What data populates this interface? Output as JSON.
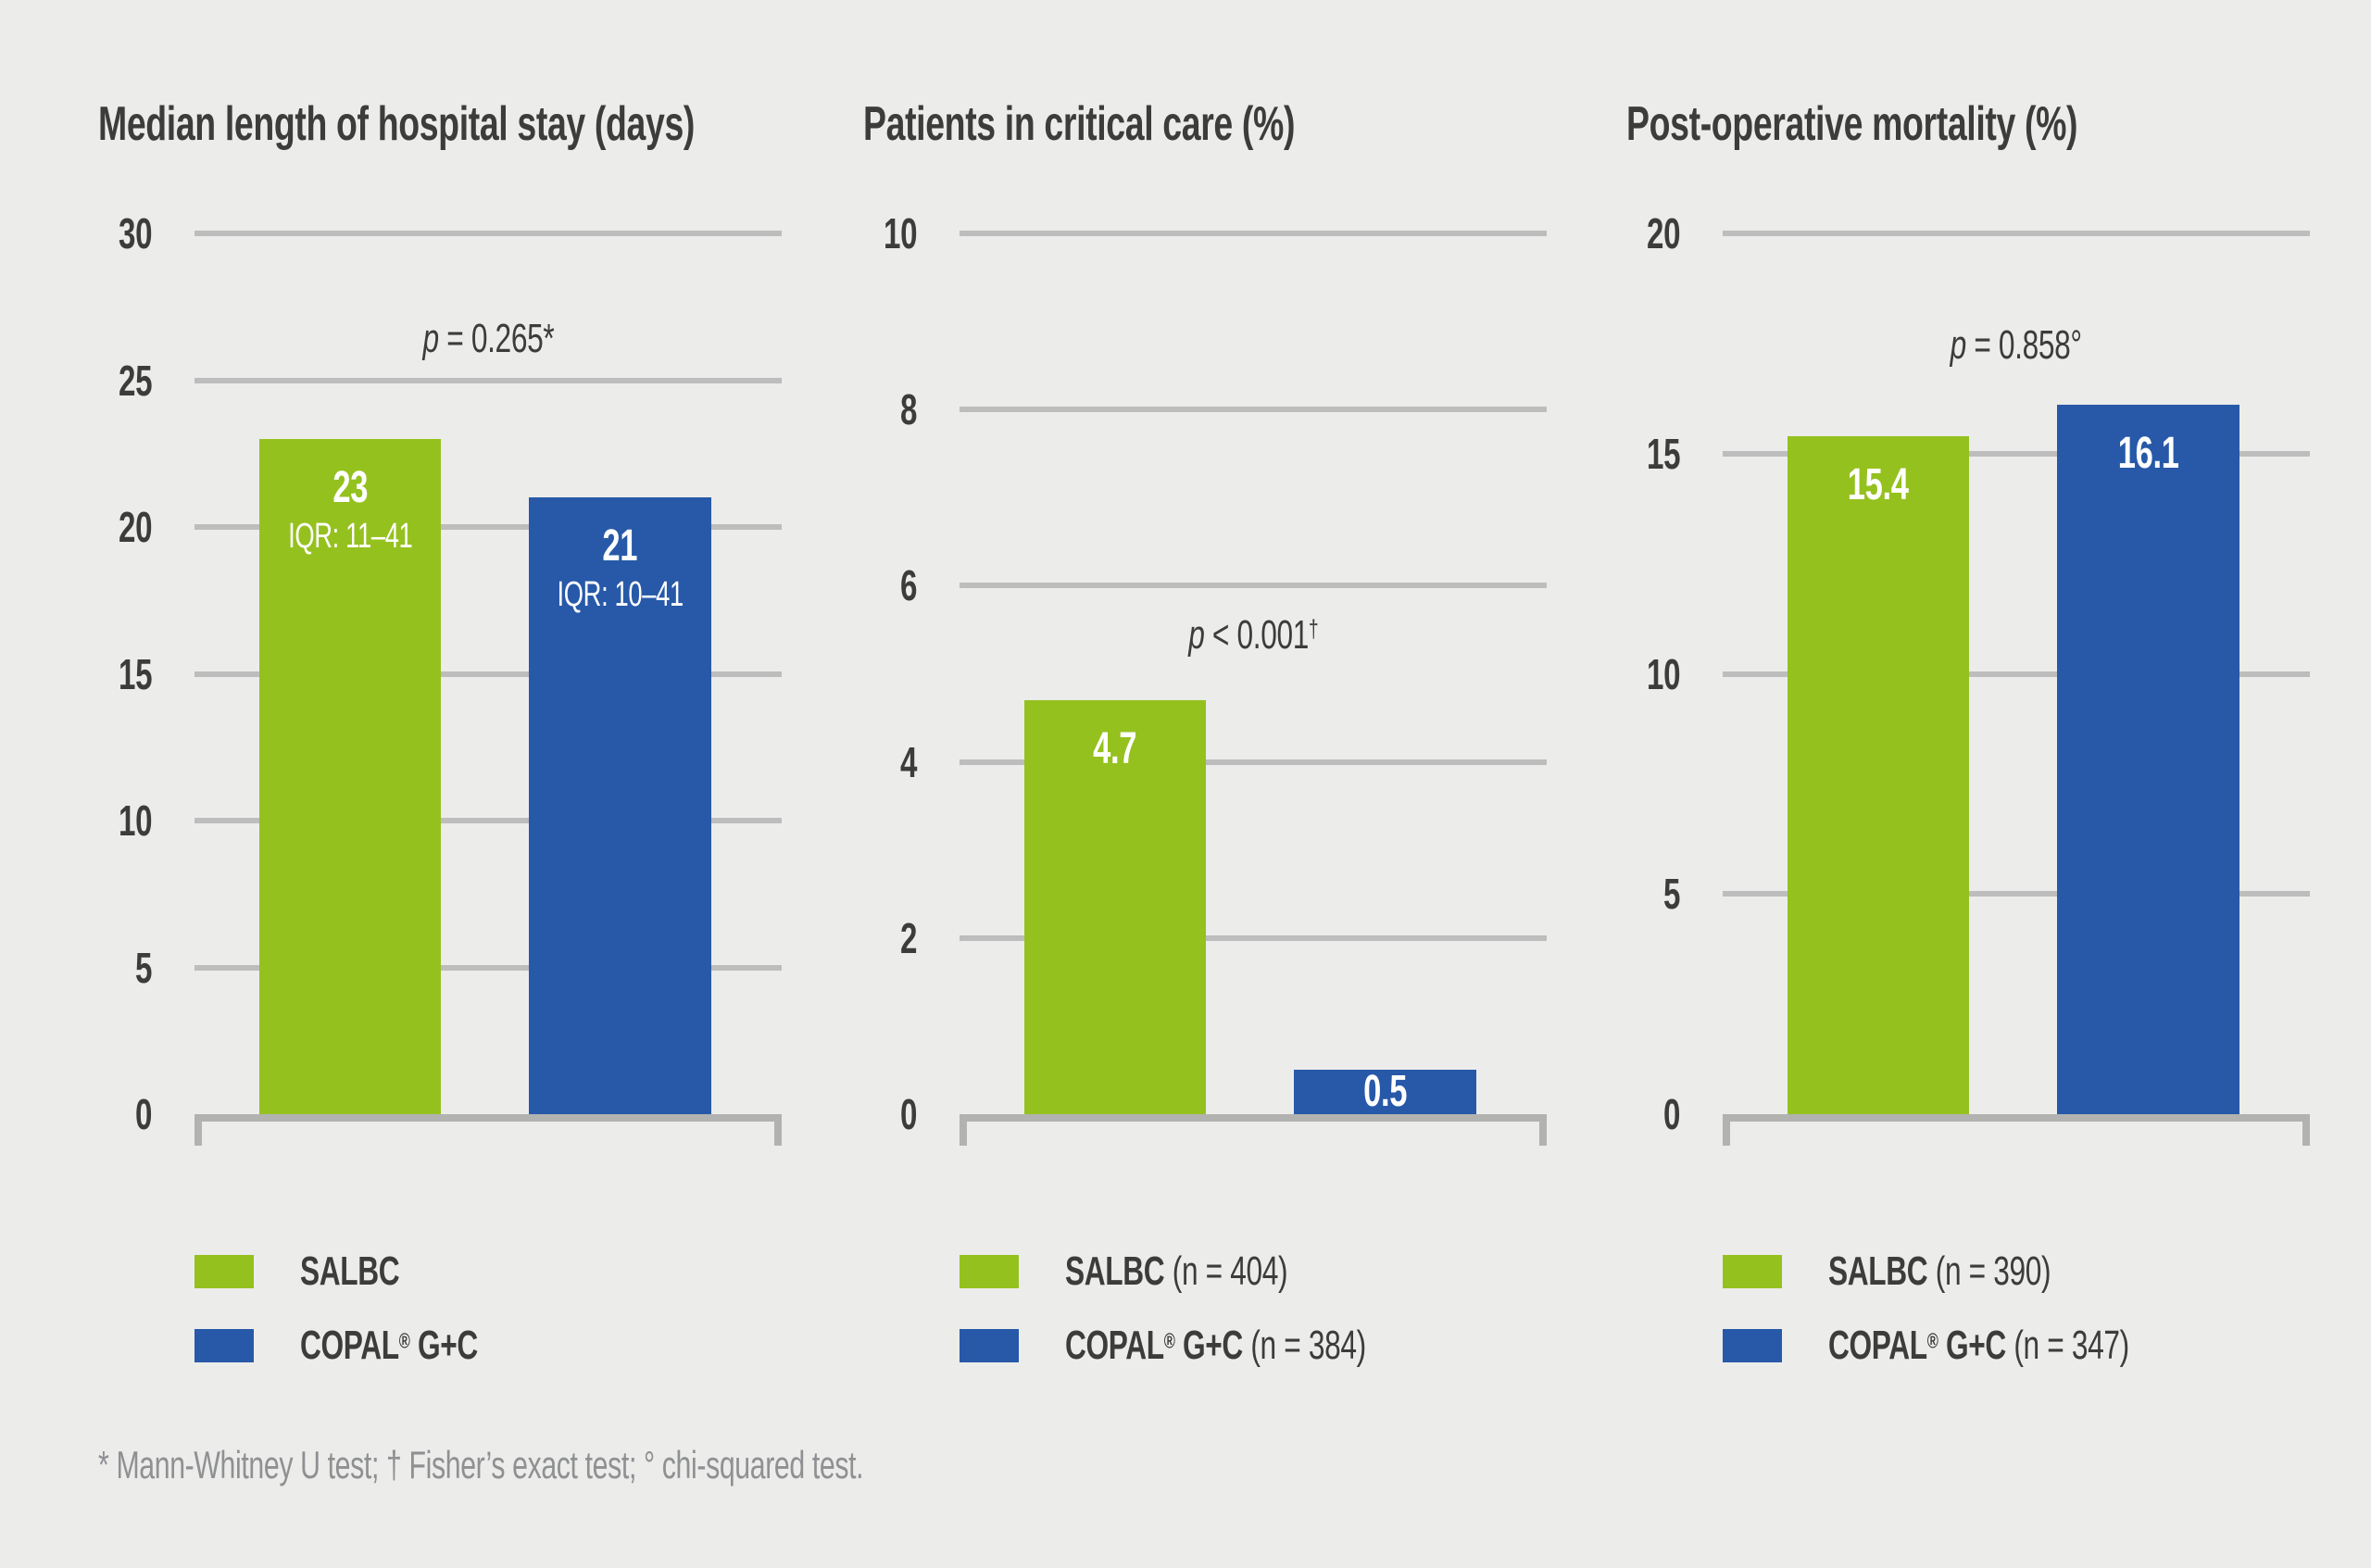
{
  "colors": {
    "salbc_green": "#95c11f",
    "copal_blue": "#2759a8",
    "background": "#ececeb",
    "text_dark": "#3c3c3b",
    "gridline_gray": "#bdbdbd",
    "axis_gray": "#b2b2b1",
    "footnote_gray": "#8f9092"
  },
  "footnote": "* Mann-Whitney U test; † Fisher’s exact test; ° chi-squared test.",
  "chart_data": [
    {
      "type": "bar",
      "title": "Median length of hospital stay (days)",
      "categories": [
        "SALBC",
        "COPAL® G+C"
      ],
      "values": [
        23,
        21
      ],
      "bar_labels": [
        "23",
        "21"
      ],
      "bar_sublabels": [
        "IQR: 11–41",
        "IQR: 10–41"
      ],
      "p_label": "p = 0.265*",
      "p_sup": "",
      "p_label_y": 26.3,
      "ylim": [
        0,
        30
      ],
      "yticks": [
        30,
        25,
        20,
        15,
        10,
        5,
        0
      ],
      "grid": true,
      "legend_position": "bottom-left",
      "legend": [
        {
          "name": "SALBC",
          "n": ""
        },
        {
          "name": "COPAL® G+C",
          "n": ""
        }
      ],
      "series_colors": [
        "#95c11f",
        "#2759a8"
      ]
    },
    {
      "type": "bar",
      "title": "Patients in critical care (%)",
      "categories": [
        "SALBC",
        "COPAL® G+C"
      ],
      "values": [
        4.7,
        0.5
      ],
      "bar_labels": [
        "4.7",
        "0.5"
      ],
      "bar_sublabels": [
        "",
        ""
      ],
      "p_label": "p < 0.001",
      "p_sup": "†",
      "p_label_y": 5.4,
      "ylim": [
        0,
        10
      ],
      "yticks": [
        10,
        8,
        6,
        4,
        2,
        0
      ],
      "grid": true,
      "legend_position": "bottom-left",
      "legend": [
        {
          "name": "SALBC",
          "n": "(n = 404)"
        },
        {
          "name": "COPAL® G+C",
          "n": "(n = 384)"
        }
      ],
      "series_colors": [
        "#95c11f",
        "#2759a8"
      ]
    },
    {
      "type": "bar",
      "title": "Post-operative mortality (%)",
      "categories": [
        "SALBC",
        "COPAL® G+C"
      ],
      "values": [
        15.4,
        16.1
      ],
      "bar_labels": [
        "15.4",
        "16.1"
      ],
      "bar_sublabels": [
        "",
        ""
      ],
      "p_label": "p = 0.858°",
      "p_sup": "",
      "p_label_y": 17.4,
      "ylim": [
        0,
        20
      ],
      "yticks": [
        20,
        15,
        10,
        5,
        0
      ],
      "grid": true,
      "legend_position": "bottom-left",
      "legend": [
        {
          "name": "SALBC",
          "n": "(n = 390)"
        },
        {
          "name": "COPAL® G+C",
          "n": "(n = 347)"
        }
      ],
      "series_colors": [
        "#95c11f",
        "#2759a8"
      ]
    }
  ]
}
